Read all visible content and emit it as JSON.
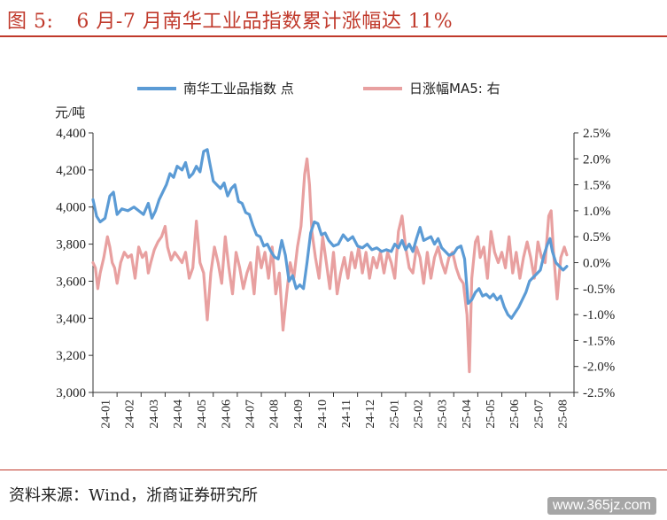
{
  "header": {
    "figure_label": "图 5:",
    "title": "6 月-7 月南华工业品指数累计涨幅达 11%"
  },
  "footer": {
    "source": "资料来源：Wind，浙商证券研究所",
    "watermark": "www.365jz.com"
  },
  "chart_data": {
    "type": "line",
    "left_axis": {
      "unit": "元/吨",
      "ylim": [
        3000,
        4400
      ],
      "ticks": [
        "3,000",
        "3,200",
        "3,400",
        "3,600",
        "3,800",
        "4,000",
        "4,200",
        "4,400"
      ]
    },
    "right_axis": {
      "ylim": [
        -2.5,
        2.5
      ],
      "ticks": [
        "-2.5%",
        "-2.0%",
        "-1.5%",
        "-1.0%",
        "-0.5%",
        "0.0%",
        "0.5%",
        "1.0%",
        "1.5%",
        "2.0%",
        "2.5%"
      ]
    },
    "x_ticks": [
      "24-01",
      "24-02",
      "24-03",
      "24-04",
      "24-05",
      "24-06",
      "24-07",
      "24-08",
      "24-09",
      "24-10",
      "24-11",
      "24-12",
      "25-01",
      "25-02",
      "25-03",
      "25-04",
      "25-05",
      "25-06",
      "25-07",
      "25-08"
    ],
    "legend_position": "top",
    "series": [
      {
        "name": "南华工业品指数 点",
        "axis": "left",
        "color": "#5b9bd5",
        "points": [
          [
            0.0,
            4040
          ],
          [
            0.15,
            3950
          ],
          [
            0.3,
            3920
          ],
          [
            0.5,
            3940
          ],
          [
            0.7,
            4060
          ],
          [
            0.85,
            4080
          ],
          [
            1.0,
            3960
          ],
          [
            1.2,
            3990
          ],
          [
            1.45,
            3980
          ],
          [
            1.7,
            4000
          ],
          [
            1.9,
            3980
          ],
          [
            2.1,
            3960
          ],
          [
            2.3,
            4020
          ],
          [
            2.45,
            3940
          ],
          [
            2.6,
            3980
          ],
          [
            2.75,
            4040
          ],
          [
            2.9,
            4080
          ],
          [
            3.05,
            4120
          ],
          [
            3.2,
            4180
          ],
          [
            3.35,
            4160
          ],
          [
            3.5,
            4220
          ],
          [
            3.7,
            4200
          ],
          [
            3.85,
            4240
          ],
          [
            4.0,
            4160
          ],
          [
            4.15,
            4180
          ],
          [
            4.3,
            4220
          ],
          [
            4.45,
            4190
          ],
          [
            4.6,
            4300
          ],
          [
            4.75,
            4310
          ],
          [
            4.85,
            4240
          ],
          [
            5.0,
            4140
          ],
          [
            5.15,
            4120
          ],
          [
            5.3,
            4100
          ],
          [
            5.45,
            4130
          ],
          [
            5.6,
            4060
          ],
          [
            5.75,
            4100
          ],
          [
            5.9,
            4120
          ],
          [
            6.05,
            4030
          ],
          [
            6.2,
            4020
          ],
          [
            6.35,
            3970
          ],
          [
            6.5,
            3960
          ],
          [
            6.65,
            3900
          ],
          [
            6.8,
            3850
          ],
          [
            6.95,
            3840
          ],
          [
            7.1,
            3790
          ],
          [
            7.25,
            3800
          ],
          [
            7.4,
            3760
          ],
          [
            7.55,
            3730
          ],
          [
            7.7,
            3720
          ],
          [
            7.85,
            3820
          ],
          [
            8.0,
            3740
          ],
          [
            8.15,
            3600
          ],
          [
            8.3,
            3630
          ],
          [
            8.45,
            3560
          ],
          [
            8.6,
            3580
          ],
          [
            8.75,
            3560
          ],
          [
            8.9,
            3700
          ],
          [
            9.05,
            3860
          ],
          [
            9.2,
            3920
          ],
          [
            9.35,
            3910
          ],
          [
            9.5,
            3850
          ],
          [
            9.65,
            3860
          ],
          [
            9.8,
            3820
          ],
          [
            10.0,
            3790
          ],
          [
            10.2,
            3800
          ],
          [
            10.4,
            3850
          ],
          [
            10.6,
            3820
          ],
          [
            10.8,
            3840
          ],
          [
            11.0,
            3790
          ],
          [
            11.2,
            3780
          ],
          [
            11.4,
            3800
          ],
          [
            11.6,
            3770
          ],
          [
            11.8,
            3780
          ],
          [
            12.0,
            3760
          ],
          [
            12.2,
            3770
          ],
          [
            12.4,
            3760
          ],
          [
            12.55,
            3800
          ],
          [
            12.7,
            3780
          ],
          [
            12.85,
            3820
          ],
          [
            13.0,
            3770
          ],
          [
            13.15,
            3800
          ],
          [
            13.3,
            3760
          ],
          [
            13.45,
            3830
          ],
          [
            13.6,
            3890
          ],
          [
            13.75,
            3820
          ],
          [
            13.9,
            3830
          ],
          [
            14.05,
            3840
          ],
          [
            14.2,
            3800
          ],
          [
            14.35,
            3830
          ],
          [
            14.5,
            3780
          ],
          [
            14.65,
            3760
          ],
          [
            14.8,
            3740
          ],
          [
            15.0,
            3750
          ],
          [
            15.15,
            3780
          ],
          [
            15.3,
            3790
          ],
          [
            15.45,
            3720
          ],
          [
            15.6,
            3480
          ],
          [
            15.75,
            3500
          ],
          [
            15.9,
            3540
          ],
          [
            16.05,
            3560
          ],
          [
            16.2,
            3520
          ],
          [
            16.35,
            3530
          ],
          [
            16.5,
            3510
          ],
          [
            16.65,
            3530
          ],
          [
            16.8,
            3500
          ],
          [
            16.95,
            3520
          ],
          [
            17.1,
            3460
          ],
          [
            17.25,
            3420
          ],
          [
            17.4,
            3400
          ],
          [
            17.55,
            3430
          ],
          [
            17.7,
            3460
          ],
          [
            17.85,
            3500
          ],
          [
            18.0,
            3540
          ],
          [
            18.15,
            3600
          ],
          [
            18.3,
            3620
          ],
          [
            18.45,
            3640
          ],
          [
            18.6,
            3660
          ],
          [
            18.75,
            3740
          ],
          [
            18.9,
            3800
          ],
          [
            19.0,
            3830
          ],
          [
            19.1,
            3760
          ],
          [
            19.25,
            3700
          ],
          [
            19.4,
            3680
          ],
          [
            19.55,
            3660
          ],
          [
            19.7,
            3680
          ]
        ]
      },
      {
        "name": "日涨幅MA5: 右",
        "axis": "right",
        "color": "#e8a0a0",
        "points": [
          [
            0.0,
            0.0
          ],
          [
            0.1,
            -0.1
          ],
          [
            0.2,
            -0.5
          ],
          [
            0.3,
            -0.2
          ],
          [
            0.45,
            0.1
          ],
          [
            0.6,
            0.5
          ],
          [
            0.7,
            0.3
          ],
          [
            0.8,
            0.0
          ],
          [
            0.9,
            -0.1
          ],
          [
            1.0,
            -0.4
          ],
          [
            1.15,
            0.0
          ],
          [
            1.3,
            0.2
          ],
          [
            1.45,
            0.1
          ],
          [
            1.6,
            0.15
          ],
          [
            1.75,
            -0.3
          ],
          [
            1.9,
            0.3
          ],
          [
            2.05,
            0.1
          ],
          [
            2.2,
            0.2
          ],
          [
            2.3,
            -0.2
          ],
          [
            2.4,
            0.0
          ],
          [
            2.55,
            0.25
          ],
          [
            2.7,
            0.4
          ],
          [
            2.85,
            0.5
          ],
          [
            3.0,
            0.7
          ],
          [
            3.1,
            0.3
          ],
          [
            3.25,
            0.05
          ],
          [
            3.4,
            0.2
          ],
          [
            3.55,
            0.1
          ],
          [
            3.7,
            0.0
          ],
          [
            3.85,
            0.2
          ],
          [
            4.0,
            -0.3
          ],
          [
            4.15,
            -0.1
          ],
          [
            4.3,
            0.8
          ],
          [
            4.45,
            0.0
          ],
          [
            4.6,
            -0.2
          ],
          [
            4.75,
            -1.1
          ],
          [
            4.9,
            -0.2
          ],
          [
            5.05,
            0.3
          ],
          [
            5.2,
            0.0
          ],
          [
            5.35,
            -0.4
          ],
          [
            5.5,
            0.5
          ],
          [
            5.65,
            -0.1
          ],
          [
            5.8,
            -0.6
          ],
          [
            5.95,
            0.2
          ],
          [
            6.1,
            -0.1
          ],
          [
            6.25,
            -0.5
          ],
          [
            6.4,
            -0.2
          ],
          [
            6.55,
            0.0
          ],
          [
            6.7,
            -0.6
          ],
          [
            6.85,
            0.3
          ],
          [
            7.0,
            -0.1
          ],
          [
            7.15,
            0.2
          ],
          [
            7.3,
            -0.3
          ],
          [
            7.45,
            0.3
          ],
          [
            7.6,
            -0.6
          ],
          [
            7.75,
            -0.2
          ],
          [
            7.9,
            -1.3
          ],
          [
            8.05,
            -0.6
          ],
          [
            8.2,
            0.0
          ],
          [
            8.35,
            -0.3
          ],
          [
            8.5,
            0.3
          ],
          [
            8.65,
            0.7
          ],
          [
            8.8,
            1.7
          ],
          [
            8.9,
            2.0
          ],
          [
            9.0,
            1.5
          ],
          [
            9.1,
            0.6
          ],
          [
            9.25,
            0.1
          ],
          [
            9.4,
            -0.3
          ],
          [
            9.55,
            0.5
          ],
          [
            9.7,
            0.0
          ],
          [
            9.85,
            -0.5
          ],
          [
            10.0,
            0.2
          ],
          [
            10.15,
            -0.6
          ],
          [
            10.3,
            -0.2
          ],
          [
            10.45,
            0.1
          ],
          [
            10.6,
            -0.3
          ],
          [
            10.75,
            0.2
          ],
          [
            10.9,
            -0.1
          ],
          [
            11.05,
            0.3
          ],
          [
            11.2,
            -0.2
          ],
          [
            11.35,
            0.2
          ],
          [
            11.5,
            -0.3
          ],
          [
            11.65,
            0.1
          ],
          [
            11.8,
            -0.1
          ],
          [
            11.95,
            0.2
          ],
          [
            12.1,
            -0.2
          ],
          [
            12.25,
            0.2
          ],
          [
            12.4,
            0.0
          ],
          [
            12.55,
            -0.3
          ],
          [
            12.7,
            0.6
          ],
          [
            12.85,
            0.9
          ],
          [
            13.0,
            0.3
          ],
          [
            13.15,
            -0.1
          ],
          [
            13.3,
            -0.2
          ],
          [
            13.45,
            0.3
          ],
          [
            13.6,
            0.1
          ],
          [
            13.75,
            -0.4
          ],
          [
            13.9,
            0.2
          ],
          [
            14.05,
            -0.3
          ],
          [
            14.2,
            0.1
          ],
          [
            14.35,
            0.3
          ],
          [
            14.5,
            0.0
          ],
          [
            14.65,
            -0.2
          ],
          [
            14.8,
            0.1
          ],
          [
            14.95,
            0.2
          ],
          [
            15.1,
            -0.1
          ],
          [
            15.25,
            -0.3
          ],
          [
            15.4,
            -0.4
          ],
          [
            15.55,
            -1.0
          ],
          [
            15.65,
            -2.1
          ],
          [
            15.75,
            -0.3
          ],
          [
            15.9,
            0.4
          ],
          [
            16.0,
            0.5
          ],
          [
            16.1,
            0.1
          ],
          [
            16.25,
            0.3
          ],
          [
            16.4,
            -0.3
          ],
          [
            16.55,
            0.6
          ],
          [
            16.7,
            0.2
          ],
          [
            16.85,
            0.0
          ],
          [
            17.0,
            0.2
          ],
          [
            17.15,
            -0.1
          ],
          [
            17.3,
            0.5
          ],
          [
            17.45,
            -0.2
          ],
          [
            17.6,
            0.2
          ],
          [
            17.75,
            -0.3
          ],
          [
            17.9,
            0.1
          ],
          [
            18.05,
            0.4
          ],
          [
            18.2,
            0.1
          ],
          [
            18.35,
            -0.3
          ],
          [
            18.5,
            0.4
          ],
          [
            18.65,
            0.1
          ],
          [
            18.8,
            0.0
          ],
          [
            18.95,
            0.9
          ],
          [
            19.05,
            1.0
          ],
          [
            19.15,
            0.2
          ],
          [
            19.3,
            -0.7
          ],
          [
            19.45,
            0.1
          ],
          [
            19.6,
            0.3
          ],
          [
            19.7,
            0.15
          ]
        ]
      }
    ]
  }
}
